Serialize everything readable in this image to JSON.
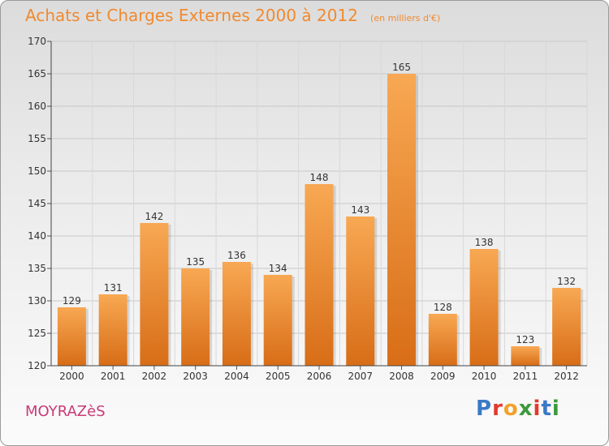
{
  "title": "Achats et Charges Externes 2000 à 2012",
  "unit_note": "(en milliers d'€)",
  "place_name": "MOYRAZèS",
  "brand": {
    "letters": [
      {
        "char": "P",
        "color": "#3a79c6"
      },
      {
        "char": "r",
        "color": "#e33a2d"
      },
      {
        "char": "o",
        "color": "#f2a12a"
      },
      {
        "char": "x",
        "color": "#3c9a3a"
      },
      {
        "char": "i",
        "color": "#e33a2d"
      },
      {
        "char": "t",
        "color": "#3a79c6"
      },
      {
        "char": "i",
        "color": "#3c9a3a"
      }
    ]
  },
  "colors": {
    "bar_light": "#f8a853",
    "bar_dark": "#d86d17",
    "title": "#f08a30",
    "place": "#c83b78"
  },
  "chart_data": {
    "type": "bar",
    "categories": [
      "2000",
      "2001",
      "2002",
      "2003",
      "2004",
      "2005",
      "2006",
      "2007",
      "2008",
      "2009",
      "2010",
      "2011",
      "2012"
    ],
    "values": [
      129,
      131,
      142,
      135,
      136,
      134,
      148,
      143,
      165,
      128,
      138,
      123,
      132
    ],
    "ylim": [
      120,
      170
    ],
    "yticks": [
      120,
      125,
      130,
      135,
      140,
      145,
      150,
      155,
      160,
      165,
      170
    ],
    "grid": true
  }
}
